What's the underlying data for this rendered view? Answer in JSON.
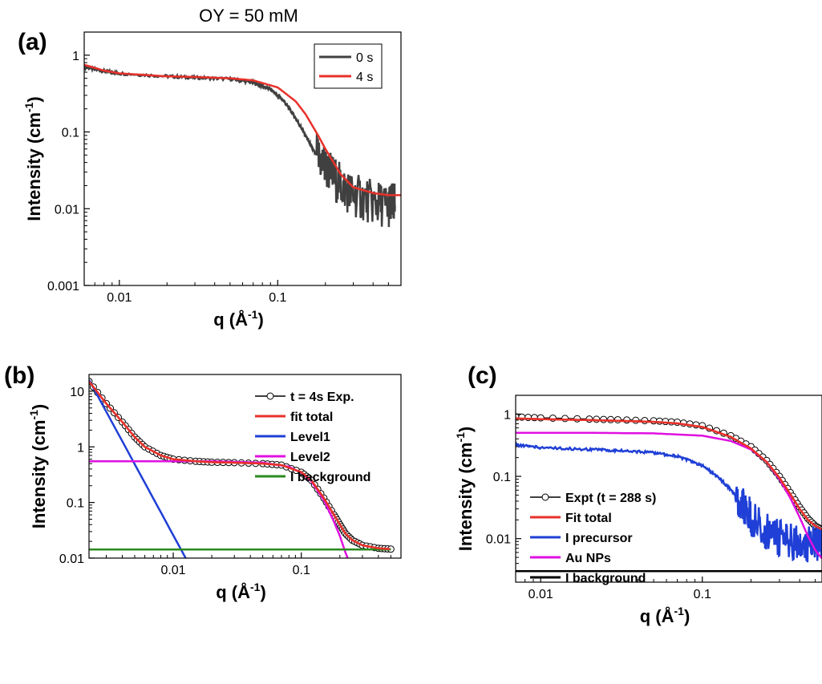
{
  "header": {
    "title": "OY = 50 mM"
  },
  "chart_data": [
    {
      "panel": "(a)",
      "type": "line",
      "xlabel": "q (Å",
      "xlabel_sup": "-1",
      "xlabel_end": ")",
      "ylabel": "Intensity (cm",
      "ylabel_sup": "-1",
      "ylabel_end": ")",
      "xscale": "log",
      "yscale": "log",
      "xlim": [
        0.006,
        0.6
      ],
      "ylim": [
        0.001,
        2
      ],
      "xticks": [
        {
          "v": 0.01,
          "label": "0.01"
        },
        {
          "v": 0.1,
          "label": "0.1"
        }
      ],
      "yticks": [
        {
          "v": 0.001,
          "label": "0.001"
        },
        {
          "v": 0.01,
          "label": "0.01"
        },
        {
          "v": 0.1,
          "label": "0.1"
        },
        {
          "v": 1,
          "label": "1"
        }
      ],
      "legend_position": "top-right",
      "series": [
        {
          "name": "0 s",
          "color": "#404040",
          "noisy": true,
          "x": [
            0.006,
            0.008,
            0.01,
            0.02,
            0.03,
            0.05,
            0.07,
            0.09,
            0.11,
            0.13,
            0.15,
            0.17,
            0.2,
            0.25,
            0.3,
            0.4,
            0.5,
            0.55
          ],
          "y": [
            0.7,
            0.62,
            0.58,
            0.53,
            0.51,
            0.49,
            0.44,
            0.36,
            0.25,
            0.15,
            0.09,
            0.055,
            0.035,
            0.02,
            0.015,
            0.012,
            0.011,
            0.011
          ]
        },
        {
          "name": "4 s",
          "color": "#e8312a",
          "x": [
            0.006,
            0.008,
            0.01,
            0.02,
            0.03,
            0.05,
            0.07,
            0.1,
            0.13,
            0.15,
            0.18,
            0.2,
            0.25,
            0.3,
            0.4,
            0.5,
            0.6
          ],
          "y": [
            0.75,
            0.63,
            0.58,
            0.53,
            0.52,
            0.5,
            0.47,
            0.38,
            0.25,
            0.17,
            0.09,
            0.06,
            0.028,
            0.019,
            0.016,
            0.015,
            0.015
          ]
        }
      ]
    },
    {
      "panel": "(b)",
      "type": "line",
      "xlabel": "q (Å",
      "xlabel_sup": "-1",
      "xlabel_end": ")",
      "ylabel": "Intensity (cm",
      "ylabel_sup": "-1",
      "ylabel_end": ")",
      "xscale": "log",
      "yscale": "log",
      "xlim": [
        0.0022,
        0.6
      ],
      "ylim": [
        0.01,
        20
      ],
      "xticks": [
        {
          "v": 0.01,
          "label": "0.01"
        },
        {
          "v": 0.1,
          "label": "0.1"
        }
      ],
      "yticks": [
        {
          "v": 0.01,
          "label": "0.01"
        },
        {
          "v": 0.1,
          "label": "0.1"
        },
        {
          "v": 1,
          "label": "1"
        },
        {
          "v": 10,
          "label": "10"
        }
      ],
      "legend_position": "top-right",
      "series": [
        {
          "name": "t = 4s Exp.",
          "color": "#000000",
          "markers": true,
          "x": [
            0.0022,
            0.003,
            0.004,
            0.005,
            0.006,
            0.008,
            0.01,
            0.015,
            0.02,
            0.03,
            0.05,
            0.07,
            0.1,
            0.12,
            0.15,
            0.18,
            0.2,
            0.22,
            0.25,
            0.3,
            0.4,
            0.5
          ],
          "y": [
            15,
            6,
            2.8,
            1.5,
            1.0,
            0.7,
            0.6,
            0.55,
            0.53,
            0.52,
            0.5,
            0.47,
            0.35,
            0.25,
            0.12,
            0.06,
            0.04,
            0.028,
            0.021,
            0.017,
            0.015,
            0.0145
          ]
        },
        {
          "name": "fit total",
          "color": "#e8312a",
          "x": [
            0.0022,
            0.003,
            0.004,
            0.005,
            0.006,
            0.008,
            0.01,
            0.015,
            0.02,
            0.03,
            0.05,
            0.07,
            0.1,
            0.12,
            0.15,
            0.18,
            0.2,
            0.22,
            0.25,
            0.3,
            0.4,
            0.5
          ],
          "y": [
            15,
            6,
            2.8,
            1.5,
            1.0,
            0.7,
            0.6,
            0.55,
            0.53,
            0.52,
            0.5,
            0.47,
            0.35,
            0.25,
            0.12,
            0.06,
            0.04,
            0.028,
            0.021,
            0.017,
            0.015,
            0.0145
          ]
        },
        {
          "name": "Level1",
          "color": "#1f3fd6",
          "x": [
            0.0022,
            0.0125
          ],
          "y": [
            16,
            0.01
          ]
        },
        {
          "name": "Level2",
          "color": "#e010e0",
          "x": [
            0.0022,
            0.02,
            0.05,
            0.08,
            0.1,
            0.12,
            0.15,
            0.18,
            0.2,
            0.22,
            0.23
          ],
          "y": [
            0.55,
            0.55,
            0.52,
            0.44,
            0.34,
            0.24,
            0.11,
            0.045,
            0.025,
            0.013,
            0.01
          ]
        },
        {
          "name": "I background",
          "color": "#2a8a1e",
          "x": [
            0.0022,
            0.5
          ],
          "y": [
            0.0143,
            0.0143
          ]
        }
      ]
    },
    {
      "panel": "(c)",
      "type": "line",
      "xlabel": "q (Å",
      "xlabel_sup": "-1",
      "xlabel_end": ")",
      "ylabel": "Intensity (cm",
      "ylabel_sup": "-1",
      "ylabel_end": ")",
      "xscale": "log",
      "yscale": "log",
      "xlim": [
        0.007,
        0.55
      ],
      "ylim": [
        0.002,
        2
      ],
      "xticks": [
        {
          "v": 0.01,
          "label": "0.01"
        },
        {
          "v": 0.1,
          "label": "0.1"
        }
      ],
      "yticks": [
        {
          "v": 0.01,
          "label": "0.01"
        },
        {
          "v": 0.1,
          "label": "0.1"
        },
        {
          "v": 1,
          "label": "1"
        }
      ],
      "legend_position": "bottom-left",
      "series": [
        {
          "name": "Expt (t = 288 s)",
          "color": "#000000",
          "markers": true,
          "x": [
            0.007,
            0.01,
            0.02,
            0.03,
            0.05,
            0.07,
            0.1,
            0.15,
            0.2,
            0.25,
            0.3,
            0.35,
            0.4,
            0.45,
            0.5,
            0.55
          ],
          "y": [
            0.9,
            0.87,
            0.83,
            0.81,
            0.78,
            0.74,
            0.65,
            0.45,
            0.3,
            0.18,
            0.1,
            0.055,
            0.032,
            0.021,
            0.016,
            0.014
          ]
        },
        {
          "name": "Fit total",
          "color": "#e8312a",
          "x": [
            0.007,
            0.01,
            0.02,
            0.03,
            0.05,
            0.07,
            0.1,
            0.15,
            0.2,
            0.25,
            0.3,
            0.35,
            0.4,
            0.45,
            0.5,
            0.55
          ],
          "y": [
            0.85,
            0.83,
            0.8,
            0.78,
            0.75,
            0.71,
            0.62,
            0.43,
            0.28,
            0.17,
            0.095,
            0.052,
            0.03,
            0.02,
            0.016,
            0.014
          ]
        },
        {
          "name": "I precursor",
          "color": "#1f3fd6",
          "noisy": true,
          "x": [
            0.007,
            0.01,
            0.02,
            0.03,
            0.05,
            0.07,
            0.1,
            0.13,
            0.15,
            0.18,
            0.2,
            0.25,
            0.3,
            0.4,
            0.5,
            0.55
          ],
          "y": [
            0.32,
            0.29,
            0.27,
            0.26,
            0.24,
            0.21,
            0.15,
            0.09,
            0.06,
            0.035,
            0.022,
            0.013,
            0.01,
            0.0085,
            0.008,
            0.008
          ]
        },
        {
          "name": "Au NPs",
          "color": "#e010e0",
          "x": [
            0.007,
            0.01,
            0.02,
            0.05,
            0.1,
            0.15,
            0.2,
            0.25,
            0.3,
            0.35,
            0.4,
            0.45,
            0.5,
            0.55
          ],
          "y": [
            0.5,
            0.5,
            0.5,
            0.49,
            0.45,
            0.37,
            0.27,
            0.17,
            0.09,
            0.045,
            0.022,
            0.011,
            0.0065,
            0.0048
          ]
        },
        {
          "name": "I background",
          "color": "#000000",
          "x": [
            0.007,
            0.55
          ],
          "y": [
            0.003,
            0.003
          ]
        }
      ]
    }
  ]
}
